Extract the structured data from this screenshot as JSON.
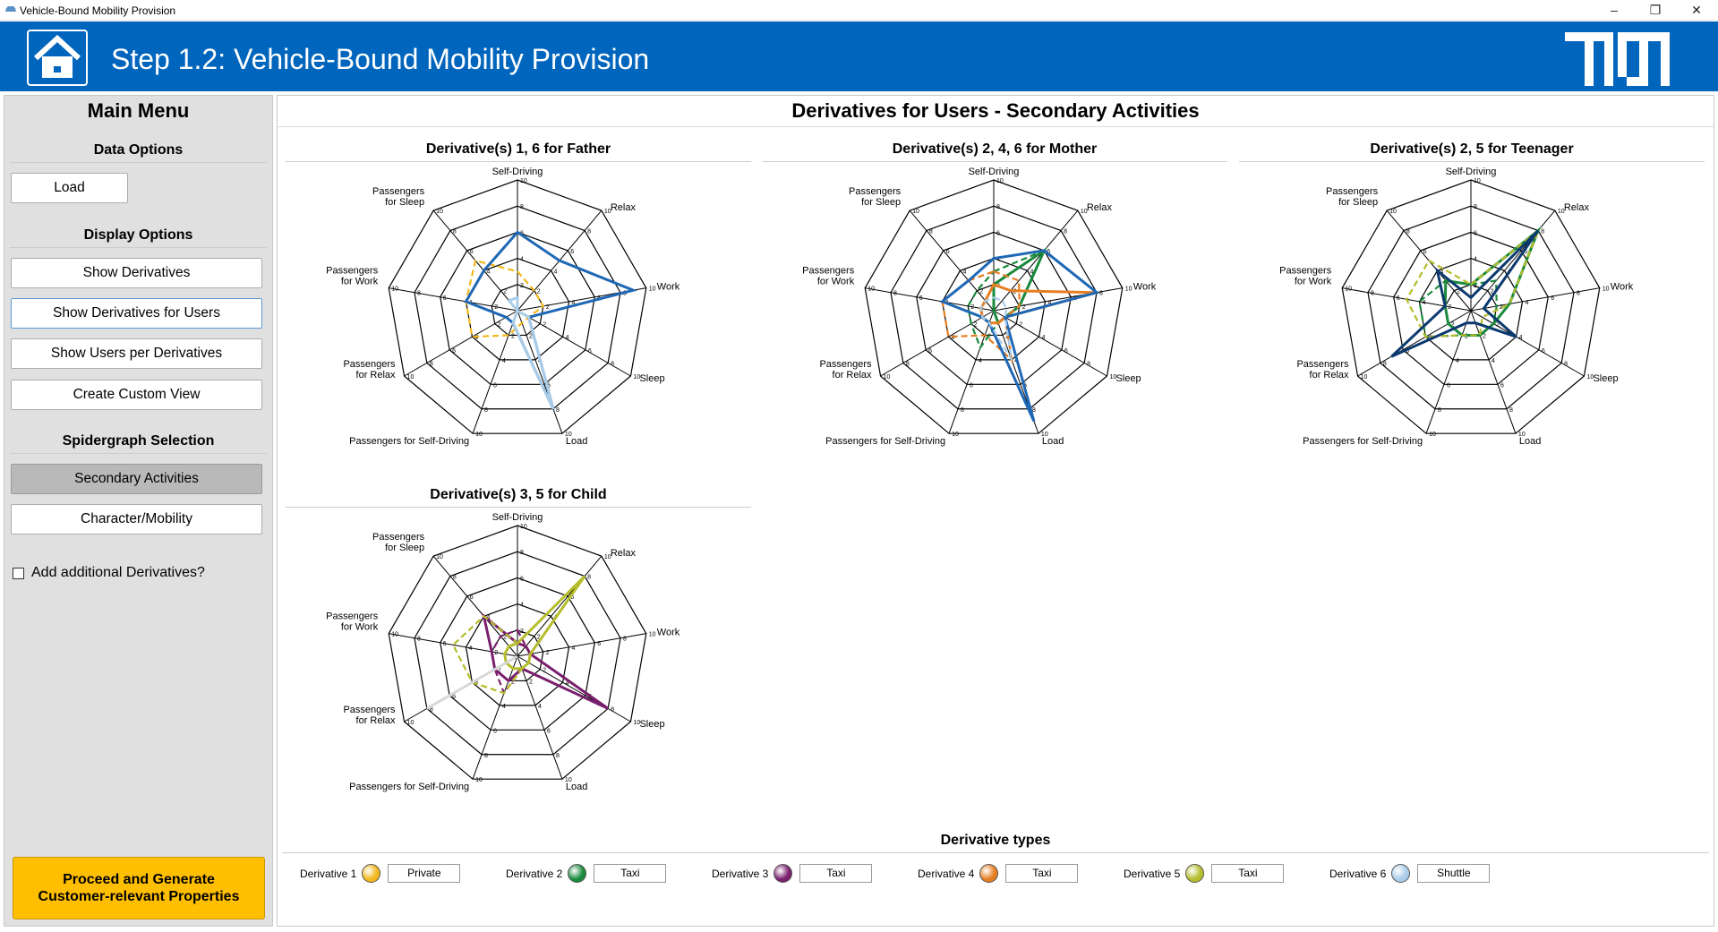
{
  "window": {
    "title": "Vehicle-Bound Mobility Provision",
    "minimize": "–",
    "restore": "❐",
    "close": "✕"
  },
  "header": {
    "title": "Step 1.2: Vehicle-Bound Mobility Provision",
    "logo": "TUM"
  },
  "sidebar": {
    "title": "Main Menu",
    "data_options": {
      "heading": "Data Options",
      "load": "Load"
    },
    "display_options": {
      "heading": "Display Options",
      "show_derivatives": "Show Derivatives",
      "show_derivatives_users": "Show Derivatives for Users",
      "show_users_per_derivatives": "Show Users per Derivatives",
      "create_custom_view": "Create Custom View"
    },
    "spidergraph": {
      "heading": "Spidergraph Selection",
      "secondary": "Secondary Activities",
      "character": "Character/Mobility"
    },
    "add_derivatives": "Add additional Derivatives?",
    "proceed_line1": "Proceed and Generate",
    "proceed_line2": "Customer-relevant Properties"
  },
  "main": {
    "title": "Derivatives for Users - Secondary Activities"
  },
  "axes": [
    "Self-Driving",
    "Relax",
    "Work",
    "Sleep",
    "Load",
    "Passengers for Self-Driving",
    "Passengers for Relax",
    "Passengers for Work",
    "Passengers for Sleep"
  ],
  "chart_data": [
    {
      "type": "radar",
      "title": "Derivative(s) 1, 6 for Father",
      "rmax": 10,
      "ticks": [
        2,
        4,
        6,
        8,
        10
      ],
      "axes": [
        "Self-Driving",
        "Relax",
        "Work",
        "Sleep",
        "Load",
        "Passengers for Self-Driving",
        "Passengers for Relax",
        "Passengers for Work",
        "Passengers for Sleep"
      ],
      "series": [
        {
          "derivative": 1,
          "user": "Father",
          "style": "dashed",
          "color": "#f2b81b",
          "values": [
            3,
            2,
            2,
            1,
            1,
            2,
            4,
            4,
            5
          ]
        },
        {
          "derivative": 1,
          "user": "Father",
          "style": "solid",
          "color": "#1f68b5",
          "values": [
            6,
            5,
            9,
            1,
            8,
            1,
            1,
            4,
            4
          ]
        },
        {
          "derivative": 6,
          "user": "Father",
          "style": "solid",
          "color": "#a9cce8",
          "values": [
            1,
            0,
            0,
            1,
            8,
            1,
            0,
            0,
            1
          ]
        }
      ]
    },
    {
      "type": "radar",
      "title": "Derivative(s) 2, 4, 6 for Mother",
      "rmax": 10,
      "ticks": [
        2,
        4,
        6,
        8,
        10
      ],
      "axes": [
        "Self-Driving",
        "Relax",
        "Work",
        "Sleep",
        "Load",
        "Passengers for Self-Driving",
        "Passengers for Relax",
        "Passengers for Work",
        "Passengers for Sleep"
      ],
      "series": [
        {
          "derivative": 2,
          "user": "Mother",
          "style": "dashed",
          "color": "#1a8a3c",
          "values": [
            3,
            6,
            2,
            1,
            1,
            3,
            2,
            2,
            2
          ]
        },
        {
          "derivative": 2,
          "user": "Mother",
          "style": "solid",
          "color": "#1a8a3c",
          "values": [
            2,
            6,
            2,
            1,
            1,
            0,
            0,
            0,
            0
          ]
        },
        {
          "derivative": 4,
          "user": "Mother",
          "style": "dashed",
          "color": "#e67e22",
          "values": [
            3,
            3,
            2,
            1,
            4,
            2,
            4,
            4,
            3
          ]
        },
        {
          "derivative": 4,
          "user": "Mother",
          "style": "solid",
          "color": "#e67e22",
          "values": [
            2,
            2,
            8,
            1,
            1,
            1,
            1,
            1,
            1
          ]
        },
        {
          "derivative": 6,
          "user": "Mother",
          "style": "solid",
          "color": "#1f68b5",
          "values": [
            4,
            6,
            8,
            1,
            9,
            1,
            1,
            4,
            3
          ]
        },
        {
          "derivative": 6,
          "user": "Mother",
          "style": "dashed",
          "color": "#a9cce8",
          "values": [
            1,
            1,
            1,
            1,
            4,
            1,
            1,
            1,
            1
          ]
        }
      ]
    },
    {
      "type": "radar",
      "title": "Derivative(s) 2, 5 for Teenager",
      "rmax": 10,
      "ticks": [
        2,
        4,
        6,
        8,
        10
      ],
      "axes": [
        "Self-Driving",
        "Relax",
        "Work",
        "Sleep",
        "Load",
        "Passengers for Self-Driving",
        "Passengers for Relax",
        "Passengers for Work",
        "Passengers for Sleep"
      ],
      "series": [
        {
          "derivative": 2,
          "user": "Teenager",
          "style": "dashed",
          "color": "#1a8a3c",
          "values": [
            2,
            3,
            2,
            2,
            2,
            2,
            4,
            4,
            3
          ]
        },
        {
          "derivative": 2,
          "user": "Teenager",
          "style": "solid",
          "color": "#1a8a3c",
          "values": [
            2,
            8,
            3,
            2,
            2,
            2,
            2,
            2,
            3
          ]
        },
        {
          "derivative": 5,
          "user": "Teenager",
          "style": "dashed",
          "color": "#b5bd2c",
          "values": [
            2,
            8,
            3,
            1,
            2,
            2,
            4,
            5,
            5
          ]
        },
        {
          "derivative": 5,
          "user": "Teenager",
          "style": "solid",
          "color": "#0c3a6e",
          "values": [
            1,
            8,
            1,
            4,
            1,
            1,
            7,
            2,
            4
          ]
        }
      ]
    },
    {
      "type": "radar",
      "title": "Derivative(s) 3, 5 for Child",
      "rmax": 10,
      "ticks": [
        2,
        4,
        6,
        8,
        10
      ],
      "axes": [
        "Self-Driving",
        "Relax",
        "Work",
        "Sleep",
        "Load",
        "Passengers for Self-Driving",
        "Passengers for Relax",
        "Passengers for Work",
        "Passengers for Sleep"
      ],
      "series": [
        {
          "derivative": 3,
          "user": "Child",
          "style": "dashed",
          "color": "#7a1f6e",
          "values": [
            2,
            1,
            1,
            8,
            1,
            3,
            2,
            2,
            2
          ]
        },
        {
          "derivative": 3,
          "user": "Child",
          "style": "solid",
          "color": "#7a1f6e",
          "values": [
            1,
            1,
            1,
            8,
            1,
            2,
            2,
            2,
            4
          ]
        },
        {
          "derivative": 5,
          "user": "Child",
          "style": "dashed",
          "color": "#b5bd2c",
          "values": [
            1,
            8,
            1,
            1,
            1,
            3,
            4,
            5,
            4
          ]
        },
        {
          "derivative": 5,
          "user": "Child",
          "style": "solid",
          "color": "#b5bd2c",
          "values": [
            1,
            8,
            1,
            1,
            1,
            1,
            1,
            1,
            1
          ]
        },
        {
          "derivative": 5,
          "user": "Child",
          "style": "solid",
          "color": "#d8d8d8",
          "values": [
            0,
            0,
            0,
            0,
            0,
            0,
            8,
            0,
            0
          ]
        }
      ]
    }
  ],
  "legend": {
    "title": "Derivative types",
    "items": [
      {
        "label": "Derivative 1",
        "color": "#f2b81b",
        "type": "Private"
      },
      {
        "label": "Derivative 2",
        "color": "#1a8a3c",
        "type": "Taxi"
      },
      {
        "label": "Derivative 3",
        "color": "#7a1f6e",
        "type": "Taxi"
      },
      {
        "label": "Derivative 4",
        "color": "#e67e22",
        "type": "Taxi"
      },
      {
        "label": "Derivative 5",
        "color": "#b5bd2c",
        "type": "Taxi"
      },
      {
        "label": "Derivative 6",
        "color": "#a9cce8",
        "type": "Shuttle"
      }
    ]
  }
}
